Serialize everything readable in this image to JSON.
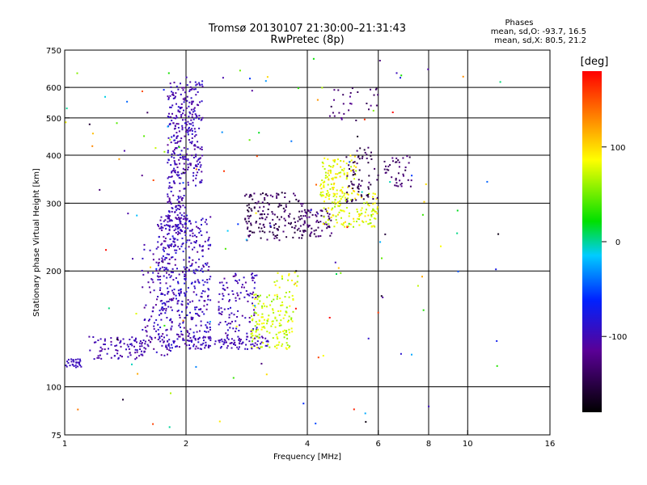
{
  "chart_data": {
    "type": "scatter",
    "title": "Tromsø 20130107 21:30:00–21:31:43",
    "subtitle": "RwPretec (8p)",
    "xlabel": "Frequency [MHz]",
    "ylabel": "Stationary phase Virtual Height [km]",
    "x_scale": "log",
    "y_scale": "log",
    "xlim": [
      1,
      16
    ],
    "ylim": [
      75,
      750
    ],
    "x_ticks": [
      1,
      2,
      4,
      6,
      8,
      10,
      16
    ],
    "x_tick_labels": [
      "1",
      "2",
      "4",
      "6",
      "8",
      "10",
      "16"
    ],
    "x_gridlines": [
      2,
      4,
      6,
      8,
      10
    ],
    "y_ticks": [
      75,
      100,
      200,
      300,
      400,
      500,
      600,
      750
    ],
    "y_tick_labels": [
      "75",
      "100",
      "200",
      "300",
      "400",
      "500",
      "600",
      "750"
    ],
    "y_gridlines": [
      100,
      200,
      300,
      400,
      500,
      600
    ],
    "stats": {
      "header": "Phases",
      "line_o": "mean, sd,O: -93.7, 16.5",
      "line_x": "mean, sd,X: 80.5, 21.2"
    },
    "colorbar": {
      "label": "[deg]",
      "range": [
        -180,
        180
      ],
      "ticks": [
        100,
        0,
        -100
      ],
      "tick_labels": [
        "100",
        "0",
        "-100"
      ]
    },
    "clusters": [
      {
        "f": [
          1.0,
          1.1
        ],
        "h": [
          112,
          118
        ],
        "phase": [
          -100,
          -90
        ],
        "count": 30
      },
      {
        "f": [
          1.15,
          1.6
        ],
        "h": [
          118,
          135
        ],
        "phase": [
          -115,
          -90
        ],
        "count": 90
      },
      {
        "f": [
          1.55,
          1.85
        ],
        "h": [
          120,
          250
        ],
        "phase": [
          -120,
          -85
        ],
        "count": 120
      },
      {
        "f": [
          1.7,
          2.3
        ],
        "h": [
          125,
          280
        ],
        "phase": [
          -115,
          -80
        ],
        "count": 420
      },
      {
        "f": [
          1.8,
          2.0
        ],
        "h": [
          250,
          620
        ],
        "phase": [
          -115,
          -85
        ],
        "count": 260
      },
      {
        "f": [
          2.0,
          2.2
        ],
        "h": [
          330,
          640
        ],
        "phase": [
          -115,
          -85
        ],
        "count": 140
      },
      {
        "f": [
          2.0,
          3.2
        ],
        "h": [
          125,
          135
        ],
        "phase": [
          -110,
          -90
        ],
        "count": 110
      },
      {
        "f": [
          2.4,
          3.0
        ],
        "h": [
          135,
          200
        ],
        "phase": [
          -115,
          -85
        ],
        "count": 110
      },
      {
        "f": [
          2.9,
          3.7
        ],
        "h": [
          125,
          175
        ],
        "phase": [
          55,
          90
        ],
        "count": 150
      },
      {
        "f": [
          3.3,
          3.8
        ],
        "h": [
          170,
          200
        ],
        "phase": [
          60,
          95
        ],
        "count": 20
      },
      {
        "f": [
          2.8,
          3.9
        ],
        "h": [
          240,
          320
        ],
        "phase": [
          -160,
          -125
        ],
        "count": 170
      },
      {
        "f": [
          3.9,
          4.6
        ],
        "h": [
          245,
          290
        ],
        "phase": [
          -150,
          -120
        ],
        "count": 70
      },
      {
        "f": [
          4.3,
          6.0
        ],
        "h": [
          260,
          320
        ],
        "phase": [
          60,
          100
        ],
        "count": 130
      },
      {
        "f": [
          4.3,
          5.3
        ],
        "h": [
          310,
          400
        ],
        "phase": [
          65,
          105
        ],
        "count": 110
      },
      {
        "f": [
          5.0,
          6.0
        ],
        "h": [
          300,
          420
        ],
        "phase": [
          -160,
          -125
        ],
        "count": 70
      },
      {
        "f": [
          6.2,
          7.3
        ],
        "h": [
          330,
          400
        ],
        "phase": [
          -150,
          -120
        ],
        "count": 40
      },
      {
        "f": [
          4.5,
          6.0
        ],
        "h": [
          490,
          600
        ],
        "phase": [
          -150,
          -110
        ],
        "count": 30
      },
      {
        "f": [
          1.0,
          12.5
        ],
        "h": [
          78,
          720
        ],
        "phase": [
          -180,
          180
        ],
        "count": 140
      }
    ]
  }
}
